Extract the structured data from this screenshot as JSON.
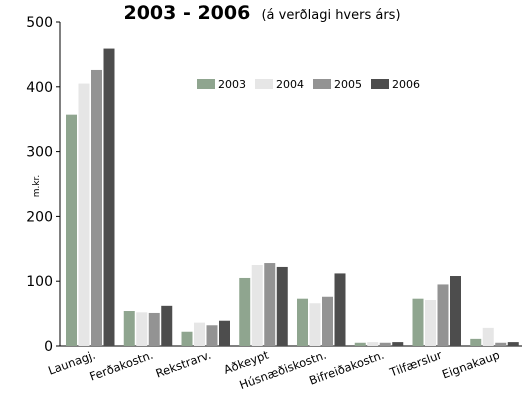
{
  "chart_data": {
    "type": "bar",
    "title": "2003 - 2006",
    "subtitle": "(á verðlagi hvers árs)",
    "xlabel": "",
    "ylabel": "m.kr.",
    "ylim": [
      0,
      500
    ],
    "yticks": [
      0,
      100,
      200,
      300,
      400,
      500
    ],
    "grid": false,
    "legend_position": "top-center",
    "categories": [
      "Launagj.",
      "Ferðakostn.",
      "Rekstrarv.",
      "Aðkeypt",
      "Húsnæðiskostn.",
      "Bifreiðakostn.",
      "Tilfærslur",
      "Eignakaup"
    ],
    "series": [
      {
        "name": "2003",
        "color": "#8fa58f",
        "values": [
          357,
          54,
          22,
          105,
          73,
          5,
          73,
          11
        ]
      },
      {
        "name": "2004",
        "color": "#e6e6e6",
        "values": [
          405,
          52,
          36,
          125,
          66,
          6,
          71,
          28
        ]
      },
      {
        "name": "2005",
        "color": "#939393",
        "values": [
          426,
          51,
          32,
          128,
          76,
          5,
          95,
          5
        ]
      },
      {
        "name": "2006",
        "color": "#4d4d4d",
        "values": [
          459,
          62,
          39,
          122,
          112,
          6,
          108,
          6
        ]
      }
    ]
  }
}
